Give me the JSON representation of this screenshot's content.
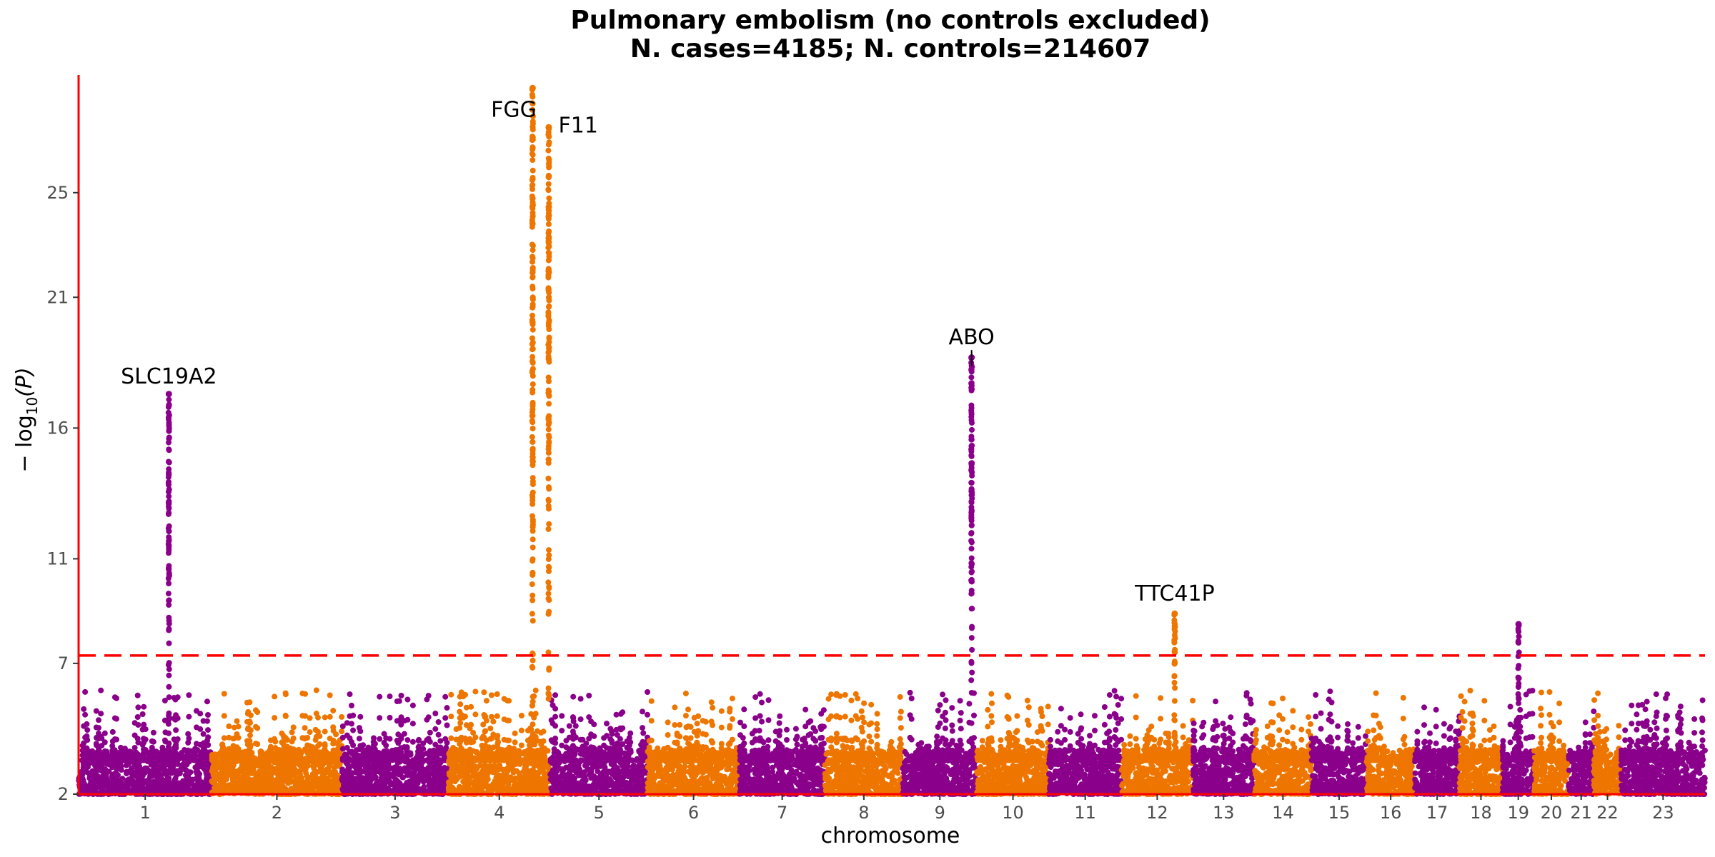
{
  "chart_data": {
    "type": "scatter",
    "title": "Pulmonary embolism (no controls excluded)",
    "subtitle": "N. cases=4185; N. controls=214607",
    "xlabel": "chromosome",
    "ylabel_main": "− log",
    "ylabel_sub": "10",
    "ylabel_tail": "(P)",
    "ylim": [
      2,
      29.5
    ],
    "yticks": [
      "2",
      "7",
      "11",
      "16",
      "21",
      "25"
    ],
    "ytick_values": [
      2,
      7,
      11,
      16,
      21,
      25
    ],
    "significance_threshold": 7.3,
    "grid": false,
    "colors": {
      "odd": "#8B008B",
      "even": "#EE7600",
      "threshold": "#FF0000",
      "axis": "#FF0000"
    },
    "chromosomes": [
      {
        "label": "1",
        "start": 0,
        "end": 248
      },
      {
        "label": "2",
        "start": 248,
        "end": 490
      },
      {
        "label": "3",
        "start": 490,
        "end": 688
      },
      {
        "label": "4",
        "start": 688,
        "end": 878
      },
      {
        "label": "5",
        "start": 878,
        "end": 1059
      },
      {
        "label": "6",
        "start": 1059,
        "end": 1230
      },
      {
        "label": "7",
        "start": 1230,
        "end": 1389
      },
      {
        "label": "8",
        "start": 1389,
        "end": 1534
      },
      {
        "label": "9",
        "start": 1534,
        "end": 1672
      },
      {
        "label": "10",
        "start": 1672,
        "end": 1806
      },
      {
        "label": "11",
        "start": 1806,
        "end": 1941
      },
      {
        "label": "12",
        "start": 1941,
        "end": 2074
      },
      {
        "label": "13",
        "start": 2074,
        "end": 2188
      },
      {
        "label": "14",
        "start": 2188,
        "end": 2295
      },
      {
        "label": "15",
        "start": 2295,
        "end": 2397
      },
      {
        "label": "16",
        "start": 2397,
        "end": 2487
      },
      {
        "label": "17",
        "start": 2487,
        "end": 2570
      },
      {
        "label": "18",
        "start": 2570,
        "end": 2650
      },
      {
        "label": "19",
        "start": 2650,
        "end": 2709
      },
      {
        "label": "20",
        "start": 2709,
        "end": 2773
      },
      {
        "label": "21",
        "start": 2773,
        "end": 2820
      },
      {
        "label": "22",
        "start": 2820,
        "end": 2871
      },
      {
        "label": "23",
        "start": 2871,
        "end": 3027
      }
    ],
    "peaks": [
      {
        "gene": "SLC19A2",
        "position": 168,
        "maxy": 17.3,
        "color": "odd"
      },
      {
        "gene": "FGG",
        "position": 845,
        "maxy": 29.0,
        "color": "even"
      },
      {
        "gene": "F11",
        "position": 875,
        "maxy": 27.5,
        "color": "even"
      },
      {
        "gene": "ABO",
        "position": 1662,
        "maxy": 18.7,
        "color": "odd"
      },
      {
        "gene": "TTC41P",
        "position": 2040,
        "maxy": 8.9,
        "color": "even"
      },
      {
        "gene": "",
        "position": 2680,
        "maxy": 8.5,
        "color": "odd"
      }
    ],
    "annotations": [
      {
        "text": "SLC19A2",
        "position": 168,
        "y": 17.7
      },
      {
        "text": "FGG",
        "position": 810,
        "y": 27.9
      },
      {
        "text": "F11",
        "position": 930,
        "y": 27.3
      },
      {
        "text": "ABO",
        "position": 1662,
        "y": 19.2
      },
      {
        "text": "TTC41P",
        "position": 2040,
        "y": 9.4
      }
    ]
  }
}
